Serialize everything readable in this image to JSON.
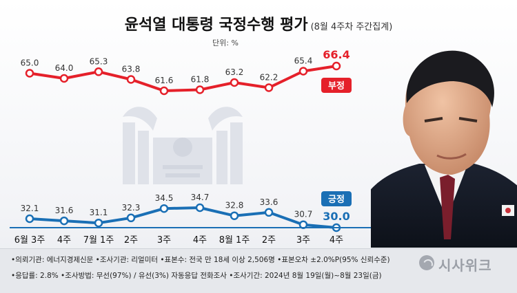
{
  "title": {
    "main": "윤석열 대통령 국정수행 평가",
    "sub": "(8월 4주차 주간집계)",
    "unit": "단위: %"
  },
  "footer": {
    "line1": "•의뢰기관: 에너지경제신문  •조사기관: 리얼미터  •표본수: 전국 만 18세 이상 2,506명  •표본오차 ±2.0%P(95% 신뢰수준)",
    "line2": "•응답률: 2.8%  •조사방법: 무선(97%) / 유선(3%) 자동응답 전화조사  •조사기간: 2024년 8월 19일(월)~8월 23일(금)",
    "logo": "시사위크"
  },
  "colors": {
    "negative": "#e5202a",
    "positive": "#1a6fb5"
  },
  "chart_data": {
    "type": "line",
    "x": [
      "6월 3주",
      "4주",
      "7월 1주",
      "2주",
      "3주",
      "4주",
      "8월 1주",
      "2주",
      "3주",
      "4주"
    ],
    "series": [
      {
        "name": "부정",
        "values": [
          65.0,
          64.0,
          65.3,
          63.8,
          61.6,
          61.8,
          63.2,
          62.2,
          65.4,
          66.4
        ],
        "labels": [
          "65.0",
          "64.0",
          "65.3",
          "63.8",
          "61.6",
          "61.8",
          "63.2",
          "62.2",
          "65.4",
          "66.4"
        ],
        "color": "#e5202a"
      },
      {
        "name": "긍정",
        "values": [
          32.1,
          31.6,
          31.1,
          32.3,
          34.5,
          34.7,
          32.8,
          33.6,
          30.7,
          30.0
        ],
        "labels": [
          "32.1",
          "31.6",
          "31.1",
          "32.3",
          "34.5",
          "34.7",
          "32.8",
          "33.6",
          "30.7",
          "30.0"
        ],
        "color": "#1a6fb5"
      }
    ],
    "legend_placement": "right end of each line",
    "grid": false
  }
}
